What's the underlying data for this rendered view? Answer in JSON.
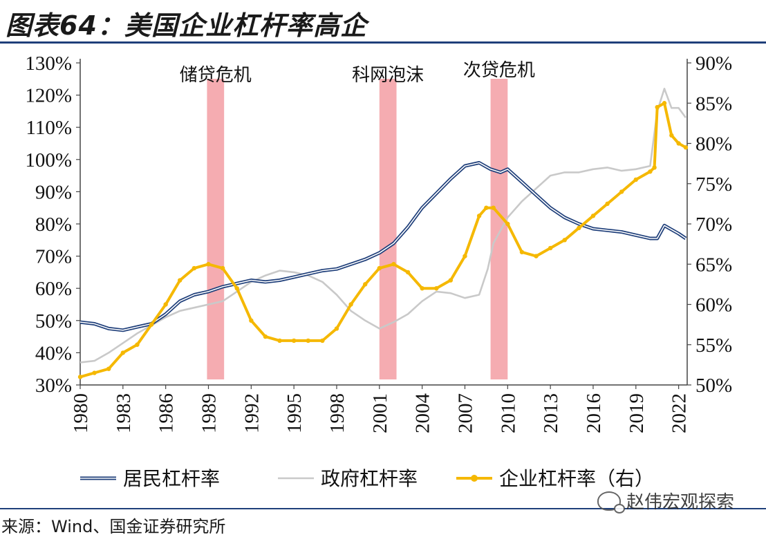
{
  "header": {
    "title": "图表64：美国企业杠杆率高企"
  },
  "footer": {
    "source": "来源：Wind、国金证券研究所",
    "watermark": "赵伟宏观探索",
    "watermark_icon": "wechat-icon"
  },
  "chart_data": {
    "type": "line",
    "x_ticks": [
      "1980",
      "1983",
      "1986",
      "1989",
      "1992",
      "1995",
      "1998",
      "2001",
      "2004",
      "2007",
      "2010",
      "2013",
      "2016",
      "2019",
      "2022"
    ],
    "x_range": [
      1980,
      2022.6
    ],
    "y_left": {
      "ticks": [
        "30%",
        "40%",
        "50%",
        "60%",
        "70%",
        "80%",
        "90%",
        "100%",
        "110%",
        "120%",
        "130%"
      ],
      "range": [
        30,
        130
      ]
    },
    "y_right": {
      "ticks": [
        "50%",
        "55%",
        "60%",
        "65%",
        "70%",
        "75%",
        "80%",
        "85%",
        "90%"
      ],
      "range": [
        50,
        90
      ]
    },
    "grid": false,
    "legend_position": "bottom",
    "crises": [
      {
        "label": "储贷危机",
        "start": 1988.9,
        "end": 1990.1,
        "color": "#f4a3a8"
      },
      {
        "label": "科网泡沫",
        "start": 2001.0,
        "end": 2002.2,
        "color": "#f4a3a8"
      },
      {
        "label": "次贷危机",
        "start": 2008.8,
        "end": 2010.0,
        "color": "#f4a3a8"
      }
    ],
    "series": [
      {
        "name": "居民杠杆率",
        "axis": "left",
        "color": "#1f3f7a",
        "style": "double",
        "x": [
          1980,
          1981,
          1982,
          1983,
          1984,
          1985,
          1986,
          1987,
          1988,
          1989,
          1990,
          1991,
          1992,
          1993,
          1994,
          1995,
          1996,
          1997,
          1998,
          1999,
          2000,
          2001,
          2002,
          2003,
          2004,
          2005,
          2006,
          2007,
          2008,
          2008.8,
          2009.5,
          2010,
          2011,
          2012,
          2013,
          2014,
          2015,
          2016,
          2017,
          2018,
          2019,
          2020,
          2020.5,
          2021,
          2022,
          2022.5
        ],
        "y": [
          49.5,
          49,
          47.5,
          47,
          48,
          49,
          52,
          56,
          58,
          59,
          60.5,
          61.5,
          62.5,
          62,
          62.5,
          63.5,
          64.5,
          65.5,
          66,
          67.5,
          69,
          71,
          74,
          79,
          85,
          89.5,
          94,
          98,
          99,
          97,
          96,
          97,
          93,
          89,
          85,
          82,
          80,
          78.5,
          78,
          77.5,
          76.5,
          75.5,
          75.5,
          79.5,
          77,
          75.5
        ]
      },
      {
        "name": "政府杠杆率",
        "axis": "left",
        "color": "#c9c9c9",
        "style": "single",
        "x": [
          1980,
          1981,
          1982,
          1983,
          1984,
          1985,
          1986,
          1987,
          1988,
          1989,
          1990,
          1991,
          1992,
          1993,
          1994,
          1995,
          1996,
          1997,
          1998,
          1999,
          2000,
          2001,
          2002,
          2003,
          2004,
          2005,
          2006,
          2007,
          2008,
          2008.6,
          2009,
          2010,
          2011,
          2012,
          2013,
          2014,
          2015,
          2016,
          2017,
          2018,
          2019,
          2020,
          2020.5,
          2021,
          2021.5,
          2022,
          2022.5
        ],
        "y": [
          37,
          37.5,
          40,
          43,
          46,
          48.5,
          51,
          53,
          54,
          55,
          56,
          59,
          62,
          64,
          65.5,
          65,
          64,
          62,
          58,
          53,
          50,
          47.5,
          49.5,
          52,
          56,
          59,
          58.5,
          57,
          58,
          66,
          74,
          82,
          87,
          91,
          95,
          96,
          96,
          97,
          97.5,
          96.5,
          97,
          98,
          115,
          122,
          116,
          116,
          113
        ]
      },
      {
        "name": "企业杠杆率（右）",
        "axis": "right",
        "color": "#f5b800",
        "style": "marker",
        "x": [
          1980,
          1981,
          1982,
          1983,
          1984,
          1985,
          1986,
          1987,
          1988,
          1989,
          1990,
          1991,
          1992,
          1993,
          1994,
          1995,
          1996,
          1997,
          1998,
          1999,
          2000,
          2001,
          2002,
          2003,
          2004,
          2005,
          2006,
          2007,
          2008,
          2008.5,
          2009,
          2010,
          2011,
          2012,
          2013,
          2014,
          2015,
          2016,
          2017,
          2018,
          2019,
          2020,
          2020.3,
          2020.5,
          2021,
          2021.5,
          2022,
          2022.5
        ],
        "y": [
          51,
          51.5,
          52,
          54,
          55,
          57.5,
          60,
          63,
          64.5,
          65,
          64.5,
          62,
          58,
          56,
          55.5,
          55.5,
          55.5,
          55.5,
          57,
          60,
          62.5,
          64.5,
          65,
          64,
          62,
          62,
          63,
          66,
          71,
          72,
          72,
          70,
          66.5,
          66,
          67,
          68,
          69.5,
          71,
          72.5,
          74,
          75.5,
          76.5,
          77,
          84.5,
          85,
          81,
          80,
          79.5
        ]
      }
    ]
  }
}
